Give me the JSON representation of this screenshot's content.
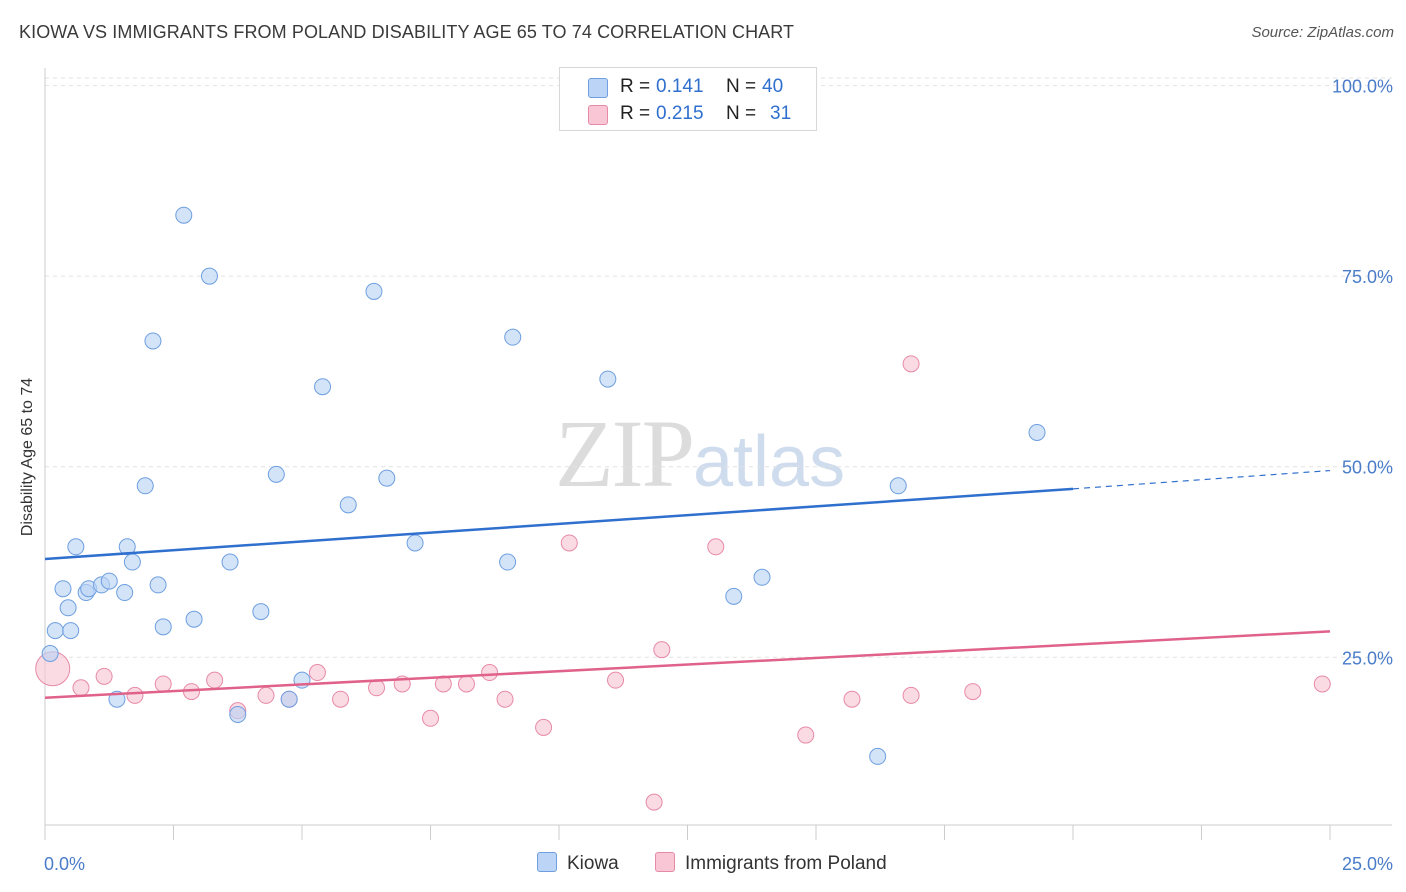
{
  "title": "KIOWA VS IMMIGRANTS FROM POLAND DISABILITY AGE 65 TO 74 CORRELATION CHART",
  "source": "Source: ZipAtlas.com",
  "watermark": {
    "zip": "ZIP",
    "atlas": "atlas"
  },
  "legend": {
    "rows": [
      {
        "r_label": "R =",
        "r_value": "0.141",
        "n_label": "N =",
        "n_value": "40"
      },
      {
        "r_label": "R =",
        "r_value": "0.215",
        "n_label": "N =",
        "n_value": "31"
      }
    ]
  },
  "bottom_legend": {
    "kiowa": "Kiowa",
    "poland": "Immigrants from Poland"
  },
  "colors": {
    "kiowa_fill": "#bcd4f5",
    "kiowa_stroke": "#6e9fe0",
    "kiowa_line": "#2f6fce",
    "poland_fill": "#f8c6d4",
    "poland_stroke": "#e78aa8",
    "poland_line": "#e0628a",
    "grid": "#e2e2e2",
    "tick": "#4a7cc9"
  },
  "chart_data": {
    "type": "scatter",
    "xlabel": "",
    "ylabel": "Disability Age 65 to 74",
    "xlim": [
      0,
      25
    ],
    "ylim": [
      3,
      101
    ],
    "x_tick_labels": [
      "0.0%",
      "25.0%"
    ],
    "y_tick_labels": [
      "25.0%",
      "50.0%",
      "75.0%",
      "100.0%"
    ],
    "y_ticks": [
      25,
      50,
      75,
      100
    ],
    "x_ticks": [
      0,
      2.5,
      5,
      7.5,
      10,
      12.5,
      15,
      17.5,
      20,
      22.5,
      25
    ],
    "grid": true,
    "legend_position": "top-center",
    "series": [
      {
        "name": "Kiowa",
        "r": 0.141,
        "n": 40,
        "points": [
          [
            0.1,
            25.5
          ],
          [
            0.2,
            28.5
          ],
          [
            0.35,
            34
          ],
          [
            0.45,
            31.5
          ],
          [
            0.5,
            28.5
          ],
          [
            0.6,
            39.5
          ],
          [
            0.8,
            33.5
          ],
          [
            0.85,
            34
          ],
          [
            1.1,
            34.5
          ],
          [
            1.25,
            35
          ],
          [
            1.55,
            33.5
          ],
          [
            1.6,
            39.5
          ],
          [
            1.7,
            37.5
          ],
          [
            1.4,
            19.5
          ],
          [
            1.95,
            47.5
          ],
          [
            2.1,
            66.5
          ],
          [
            2.2,
            34.5
          ],
          [
            2.3,
            29
          ],
          [
            2.7,
            83
          ],
          [
            2.9,
            30
          ],
          [
            3.2,
            75
          ],
          [
            3.6,
            37.5
          ],
          [
            3.75,
            17.5
          ],
          [
            4.2,
            31
          ],
          [
            4.5,
            49
          ],
          [
            4.75,
            19.5
          ],
          [
            5.0,
            22
          ],
          [
            5.4,
            60.5
          ],
          [
            5.9,
            45
          ],
          [
            6.4,
            73
          ],
          [
            6.65,
            48.5
          ],
          [
            7.2,
            40
          ],
          [
            9.0,
            37.5
          ],
          [
            9.1,
            67
          ],
          [
            10.95,
            61.5
          ],
          [
            13.4,
            33
          ],
          [
            13.95,
            35.5
          ],
          [
            16.2,
            12
          ],
          [
            16.6,
            47.5
          ],
          [
            19.3,
            54.5
          ]
        ],
        "trend": {
          "x_start": 0,
          "y_start": 37.9,
          "x_solid_end": 20,
          "y_solid_end": 47.1,
          "x_end": 25,
          "y_end": 49.5
        }
      },
      {
        "name": "Immigrants from Poland",
        "r": 0.215,
        "n": 31,
        "points": [
          [
            0.15,
            23.5
          ],
          [
            0.7,
            21
          ],
          [
            1.15,
            22.5
          ],
          [
            1.75,
            20
          ],
          [
            2.3,
            21.5
          ],
          [
            2.85,
            20.5
          ],
          [
            3.3,
            22
          ],
          [
            3.75,
            18
          ],
          [
            4.3,
            20
          ],
          [
            4.75,
            19.5
          ],
          [
            5.3,
            23
          ],
          [
            5.75,
            19.5
          ],
          [
            6.45,
            21
          ],
          [
            6.95,
            21.5
          ],
          [
            7.5,
            17
          ],
          [
            7.75,
            21.5
          ],
          [
            8.2,
            21.5
          ],
          [
            8.65,
            23
          ],
          [
            8.95,
            19.5
          ],
          [
            9.7,
            15.8
          ],
          [
            10.2,
            40
          ],
          [
            11.1,
            22
          ],
          [
            11.85,
            6
          ],
          [
            12.0,
            26
          ],
          [
            13.05,
            39.5
          ],
          [
            14.8,
            14.8
          ],
          [
            15.7,
            19.5
          ],
          [
            16.85,
            20
          ],
          [
            16.85,
            63.5
          ],
          [
            18.05,
            20.5
          ],
          [
            24.85,
            21.5
          ]
        ],
        "trend": {
          "x_start": 0,
          "y_start": 19.7,
          "x_end": 25,
          "y_end": 28.4
        }
      }
    ]
  }
}
